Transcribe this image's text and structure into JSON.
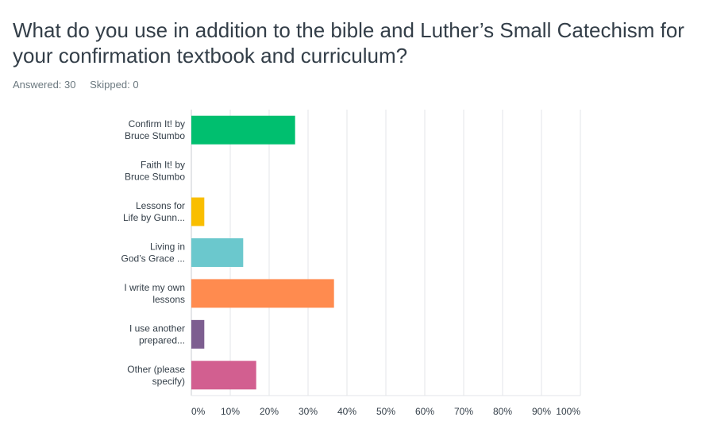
{
  "question": {
    "title": "What do you use in addition to the bible and Luther’s Small Catechism for your confirmation textbook and curriculum?"
  },
  "stats": {
    "answered_label": "Answered: 30",
    "skipped_label": "Skipped: 0"
  },
  "chart_data": {
    "type": "bar",
    "orientation": "horizontal",
    "categories": [
      [
        "Confirm It! by",
        "Bruce Stumbo"
      ],
      [
        "Faith It! by",
        "Bruce Stumbo"
      ],
      [
        "Lessons for",
        "Life by Gunn..."
      ],
      [
        "Living in",
        "God’s Grace ..."
      ],
      [
        "I write my own",
        "lessons"
      ],
      [
        "I use another",
        "prepared..."
      ],
      [
        "Other (please",
        "specify)"
      ]
    ],
    "values": [
      26.67,
      0,
      3.33,
      13.33,
      36.67,
      3.33,
      16.67
    ],
    "colors": [
      "#00bf6f",
      "#a05fba",
      "#f9be00",
      "#6bc8cd",
      "#ff8b4f",
      "#7d5e90",
      "#d25f90"
    ],
    "xlim": [
      0,
      100
    ],
    "xticks": [
      "0%",
      "10%",
      "20%",
      "30%",
      "40%",
      "50%",
      "60%",
      "70%",
      "80%",
      "90%",
      "100%"
    ],
    "grid": true
  }
}
